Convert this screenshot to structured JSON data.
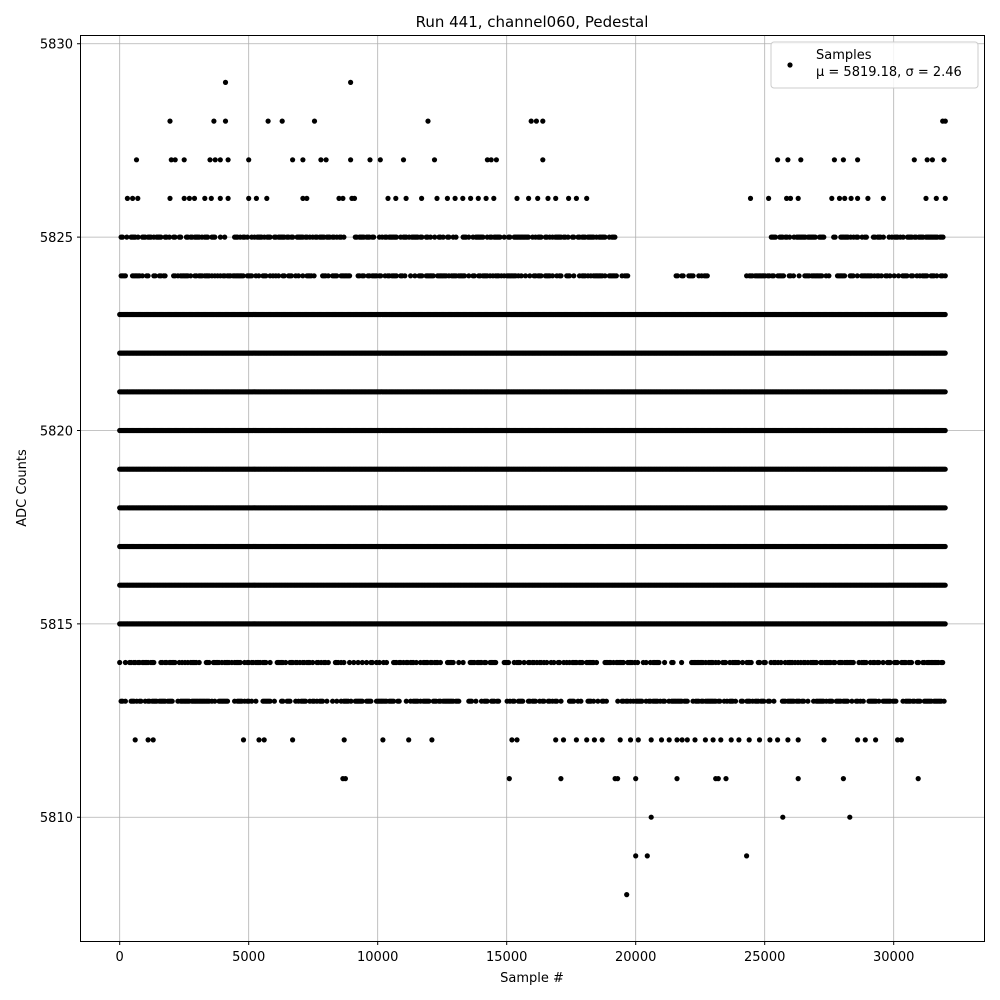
{
  "chart_data": {
    "type": "scatter",
    "title": "Run 441, channel060, Pedestal",
    "xlabel": "Sample #",
    "ylabel": "ADC Counts",
    "xlim": [
      -1500,
      33500
    ],
    "ylim": [
      5806.8,
      5830.2
    ],
    "xticks": [
      0,
      5000,
      10000,
      15000,
      20000,
      25000,
      30000
    ],
    "yticks": [
      5810,
      5815,
      5820,
      5825,
      5830
    ],
    "grid": true,
    "legend_position": "top-right",
    "n_samples": 32000,
    "series": [
      {
        "name": "Samples",
        "color": "#000000",
        "marker": "circle",
        "dense_levels": [
          {
            "y": 5823,
            "x_ranges": [
              [
                0,
                32000
              ]
            ]
          },
          {
            "y": 5822,
            "x_ranges": [
              [
                0,
                32000
              ]
            ]
          },
          {
            "y": 5821,
            "x_ranges": [
              [
                0,
                32000
              ]
            ]
          },
          {
            "y": 5820,
            "x_ranges": [
              [
                0,
                32000
              ]
            ]
          },
          {
            "y": 5819,
            "x_ranges": [
              [
                0,
                32000
              ]
            ]
          },
          {
            "y": 5818,
            "x_ranges": [
              [
                0,
                32000
              ]
            ]
          },
          {
            "y": 5817,
            "x_ranges": [
              [
                0,
                32000
              ]
            ]
          },
          {
            "y": 5816,
            "x_ranges": [
              [
                0,
                32000
              ]
            ]
          },
          {
            "y": 5815,
            "x_ranges": [
              [
                0,
                32000
              ]
            ]
          }
        ],
        "medium_levels": [
          {
            "y": 5825,
            "x_ranges": [
              [
                0,
                19200
              ],
              [
                25200,
                32000
              ]
            ]
          },
          {
            "y": 5824,
            "x_ranges": [
              [
                0,
                19700
              ],
              [
                21400,
                22800
              ],
              [
                24300,
                32000
              ]
            ]
          },
          {
            "y": 5814,
            "x_ranges": [
              [
                0,
                32000
              ]
            ]
          },
          {
            "y": 5813,
            "x_ranges": [
              [
                0,
                32000
              ]
            ]
          }
        ],
        "sparse_points": [
          [
            4100,
            5829
          ],
          [
            8950,
            5829
          ],
          [
            1950,
            5828
          ],
          [
            3650,
            5828
          ],
          [
            4100,
            5828
          ],
          [
            5750,
            5828
          ],
          [
            6300,
            5828
          ],
          [
            7550,
            5828
          ],
          [
            11950,
            5828
          ],
          [
            15950,
            5828
          ],
          [
            16150,
            5828
          ],
          [
            16400,
            5828
          ],
          [
            31900,
            5828
          ],
          [
            32000,
            5828
          ],
          [
            650,
            5827
          ],
          [
            2000,
            5827
          ],
          [
            2150,
            5827
          ],
          [
            2500,
            5827
          ],
          [
            3500,
            5827
          ],
          [
            3700,
            5827
          ],
          [
            3900,
            5827
          ],
          [
            4200,
            5827
          ],
          [
            5000,
            5827
          ],
          [
            6700,
            5827
          ],
          [
            7100,
            5827
          ],
          [
            7800,
            5827
          ],
          [
            8000,
            5827
          ],
          [
            8950,
            5827
          ],
          [
            9700,
            5827
          ],
          [
            10100,
            5827
          ],
          [
            11000,
            5827
          ],
          [
            12200,
            5827
          ],
          [
            14250,
            5827
          ],
          [
            14400,
            5827
          ],
          [
            14600,
            5827
          ],
          [
            16400,
            5827
          ],
          [
            25500,
            5827
          ],
          [
            25900,
            5827
          ],
          [
            26400,
            5827
          ],
          [
            27700,
            5827
          ],
          [
            28050,
            5827
          ],
          [
            28600,
            5827
          ],
          [
            30800,
            5827
          ],
          [
            31300,
            5827
          ],
          [
            31500,
            5827
          ],
          [
            31950,
            5827
          ],
          [
            300,
            5826
          ],
          [
            500,
            5826
          ],
          [
            700,
            5826
          ],
          [
            1950,
            5826
          ],
          [
            2500,
            5826
          ],
          [
            2700,
            5826
          ],
          [
            2900,
            5826
          ],
          [
            3300,
            5826
          ],
          [
            3550,
            5826
          ],
          [
            3900,
            5826
          ],
          [
            4200,
            5826
          ],
          [
            5000,
            5826
          ],
          [
            5300,
            5826
          ],
          [
            5700,
            5826
          ],
          [
            7100,
            5826
          ],
          [
            7250,
            5826
          ],
          [
            8500,
            5826
          ],
          [
            8650,
            5826
          ],
          [
            9000,
            5826
          ],
          [
            9100,
            5826
          ],
          [
            10400,
            5826
          ],
          [
            10700,
            5826
          ],
          [
            11100,
            5826
          ],
          [
            11700,
            5826
          ],
          [
            12300,
            5826
          ],
          [
            12700,
            5826
          ],
          [
            13000,
            5826
          ],
          [
            13300,
            5826
          ],
          [
            13600,
            5826
          ],
          [
            13900,
            5826
          ],
          [
            14200,
            5826
          ],
          [
            14500,
            5826
          ],
          [
            15400,
            5826
          ],
          [
            15850,
            5826
          ],
          [
            16200,
            5826
          ],
          [
            16600,
            5826
          ],
          [
            16900,
            5826
          ],
          [
            17400,
            5826
          ],
          [
            17700,
            5826
          ],
          [
            18100,
            5826
          ],
          [
            24450,
            5826
          ],
          [
            25150,
            5826
          ],
          [
            25850,
            5826
          ],
          [
            26000,
            5826
          ],
          [
            26300,
            5826
          ],
          [
            27600,
            5826
          ],
          [
            27900,
            5826
          ],
          [
            28100,
            5826
          ],
          [
            28350,
            5826
          ],
          [
            28600,
            5826
          ],
          [
            29000,
            5826
          ],
          [
            29600,
            5826
          ],
          [
            31250,
            5826
          ],
          [
            31650,
            5826
          ],
          [
            32000,
            5826
          ],
          [
            600,
            5812
          ],
          [
            1100,
            5812
          ],
          [
            1300,
            5812
          ],
          [
            4800,
            5812
          ],
          [
            5400,
            5812
          ],
          [
            5600,
            5812
          ],
          [
            6700,
            5812
          ],
          [
            8700,
            5812
          ],
          [
            10200,
            5812
          ],
          [
            11200,
            5812
          ],
          [
            12100,
            5812
          ],
          [
            15200,
            5812
          ],
          [
            15400,
            5812
          ],
          [
            16900,
            5812
          ],
          [
            17200,
            5812
          ],
          [
            17700,
            5812
          ],
          [
            18100,
            5812
          ],
          [
            18400,
            5812
          ],
          [
            18700,
            5812
          ],
          [
            19400,
            5812
          ],
          [
            19800,
            5812
          ],
          [
            20100,
            5812
          ],
          [
            20600,
            5812
          ],
          [
            21000,
            5812
          ],
          [
            21300,
            5812
          ],
          [
            21600,
            5812
          ],
          [
            21800,
            5812
          ],
          [
            22000,
            5812
          ],
          [
            22300,
            5812
          ],
          [
            22700,
            5812
          ],
          [
            23000,
            5812
          ],
          [
            23300,
            5812
          ],
          [
            23700,
            5812
          ],
          [
            24000,
            5812
          ],
          [
            24400,
            5812
          ],
          [
            24800,
            5812
          ],
          [
            25200,
            5812
          ],
          [
            25500,
            5812
          ],
          [
            25900,
            5812
          ],
          [
            26300,
            5812
          ],
          [
            27300,
            5812
          ],
          [
            28600,
            5812
          ],
          [
            28900,
            5812
          ],
          [
            29300,
            5812
          ],
          [
            30150,
            5812
          ],
          [
            30300,
            5812
          ],
          [
            8650,
            5811
          ],
          [
            8750,
            5811
          ],
          [
            15100,
            5811
          ],
          [
            17100,
            5811
          ],
          [
            19200,
            5811
          ],
          [
            19300,
            5811
          ],
          [
            20000,
            5811
          ],
          [
            21600,
            5811
          ],
          [
            23100,
            5811
          ],
          [
            23200,
            5811
          ],
          [
            23500,
            5811
          ],
          [
            26300,
            5811
          ],
          [
            28050,
            5811
          ],
          [
            30950,
            5811
          ],
          [
            20600,
            5810
          ],
          [
            25700,
            5810
          ],
          [
            28300,
            5810
          ],
          [
            20000,
            5809
          ],
          [
            20450,
            5809
          ],
          [
            24300,
            5809
          ],
          [
            19650,
            5808
          ]
        ]
      }
    ]
  },
  "legend": {
    "series_label": "Samples",
    "stats_label": "μ = 5819.18, σ = 2.46"
  }
}
